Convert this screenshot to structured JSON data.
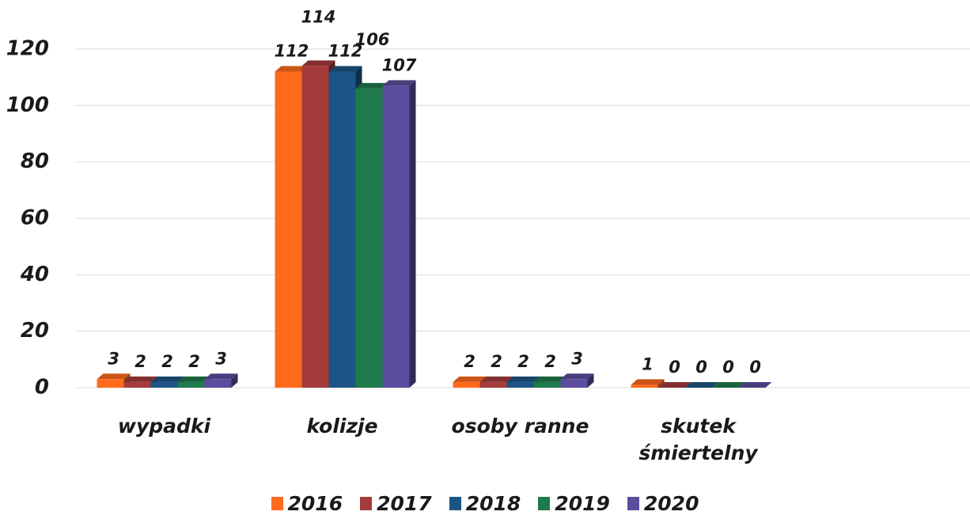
{
  "chart_data": {
    "type": "bar3d",
    "categories": [
      "wypadki",
      "kolizje",
      "osoby ranne",
      "skutek śmiertelny"
    ],
    "series": [
      {
        "name": "2016",
        "color": "#ff6a1c",
        "values": [
          3,
          112,
          2,
          1
        ]
      },
      {
        "name": "2017",
        "color": "#a53b3b",
        "values": [
          2,
          114,
          2,
          0
        ]
      },
      {
        "name": "2018",
        "color": "#1c5585",
        "values": [
          2,
          112,
          2,
          0
        ]
      },
      {
        "name": "2019",
        "color": "#1f7a4b",
        "values": [
          2,
          106,
          2,
          0
        ]
      },
      {
        "name": "2020",
        "color": "#5b4c9e",
        "values": [
          3,
          107,
          3,
          0
        ]
      }
    ],
    "ylim": [
      0,
      120
    ],
    "yticks": [
      0,
      20,
      40,
      60,
      80,
      100,
      120
    ],
    "grid": true,
    "legend": "bottom"
  }
}
